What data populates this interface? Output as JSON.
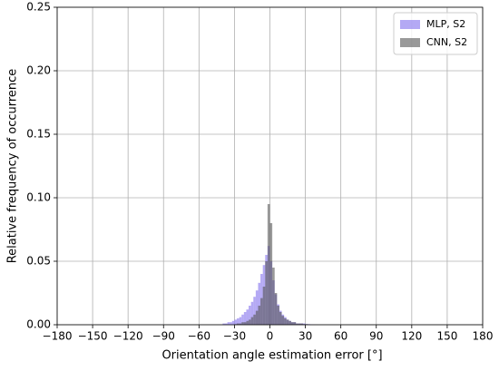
{
  "chart_data": {
    "type": "histogram",
    "xlabel": "Orientation angle estimation error [°]",
    "ylabel": "Relative frequency of occurrence",
    "bins": [
      -40,
      -38,
      -36,
      -34,
      -32,
      -30,
      -28,
      -26,
      -24,
      -22,
      -20,
      -18,
      -16,
      -14,
      -12,
      -10,
      -8,
      -6,
      -4,
      -2,
      0,
      2,
      4,
      6,
      8,
      10,
      12,
      14,
      16,
      18,
      20,
      22,
      24,
      26,
      28,
      30,
      32,
      34,
      36,
      38,
      40
    ],
    "series": [
      {
        "name": "MLP, S2",
        "color": "#9b8cf0",
        "alpha": 0.75,
        "values": [
          0.001,
          0.001,
          0.002,
          0.002,
          0.003,
          0.004,
          0.005,
          0.006,
          0.008,
          0.01,
          0.012,
          0.015,
          0.018,
          0.022,
          0.027,
          0.033,
          0.04,
          0.047,
          0.055,
          0.062,
          0.05,
          0.035,
          0.024,
          0.016,
          0.011,
          0.008,
          0.006,
          0.004,
          0.003,
          0.002,
          0.002,
          0.001,
          0.001,
          0.001,
          0.001,
          0.0005,
          0.0005,
          0.0003,
          0.0002,
          0.0001
        ]
      },
      {
        "name": "CNN, S2",
        "color": "#555555",
        "alpha": 0.6,
        "values": [
          0,
          0,
          0,
          0,
          0,
          0.0005,
          0.001,
          0.001,
          0.002,
          0.002,
          0.003,
          0.004,
          0.006,
          0.008,
          0.011,
          0.015,
          0.021,
          0.03,
          0.05,
          0.095,
          0.08,
          0.045,
          0.025,
          0.015,
          0.01,
          0.007,
          0.005,
          0.004,
          0.003,
          0.002,
          0.002,
          0.001,
          0.001,
          0.001,
          0.0005,
          0.0005,
          0,
          0,
          0,
          0
        ]
      }
    ],
    "xlim": [
      -180,
      180
    ],
    "xticks": [
      {
        "value": -180,
        "label": "−180"
      },
      {
        "value": -150,
        "label": "−150"
      },
      {
        "value": -120,
        "label": "−120"
      },
      {
        "value": -90,
        "label": "−90"
      },
      {
        "value": -60,
        "label": "−60"
      },
      {
        "value": -30,
        "label": "−30"
      },
      0,
      30,
      60,
      90,
      120,
      150,
      180
    ],
    "ylim": [
      0,
      0.25
    ],
    "yticks": [
      {
        "value": 0,
        "label": "0.00"
      },
      {
        "value": 0.05,
        "label": "0.05"
      },
      {
        "value": 0.1,
        "label": "0.10"
      },
      {
        "value": 0.15,
        "label": "0.15"
      },
      {
        "value": 0.2,
        "label": "0.20"
      },
      {
        "value": 0.25,
        "label": "0.25"
      }
    ],
    "grid": true,
    "legend": "upper right"
  }
}
